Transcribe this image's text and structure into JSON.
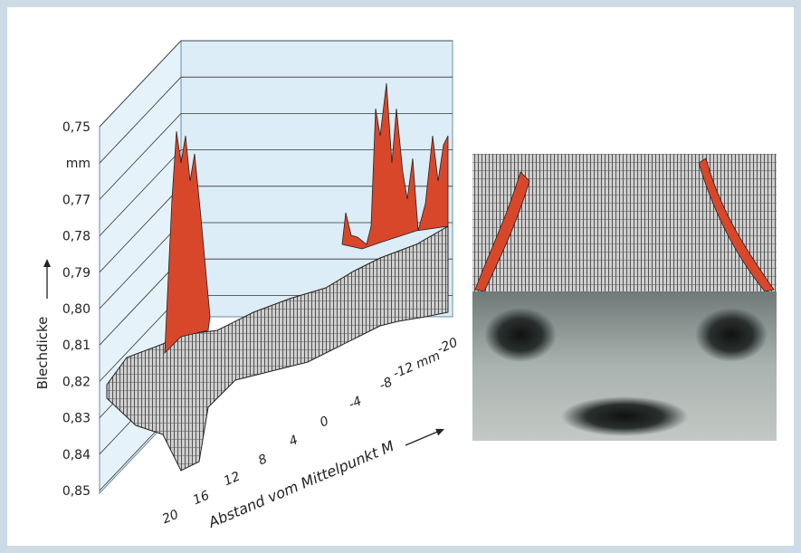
{
  "y_axis": {
    "title": "Blechdicke",
    "labels": [
      "0,75",
      "mm",
      "0,77",
      "0,78",
      "0,79",
      "0,80",
      "0,81",
      "0,82",
      "0,83",
      "0,84",
      "0,85"
    ]
  },
  "x_axis": {
    "title": "Abstand vom Mittelpunkt M",
    "labels": [
      "20",
      "16",
      "12",
      "8",
      "4",
      "0",
      "-4",
      "-8",
      "-12 mm",
      "-20"
    ]
  }
}
